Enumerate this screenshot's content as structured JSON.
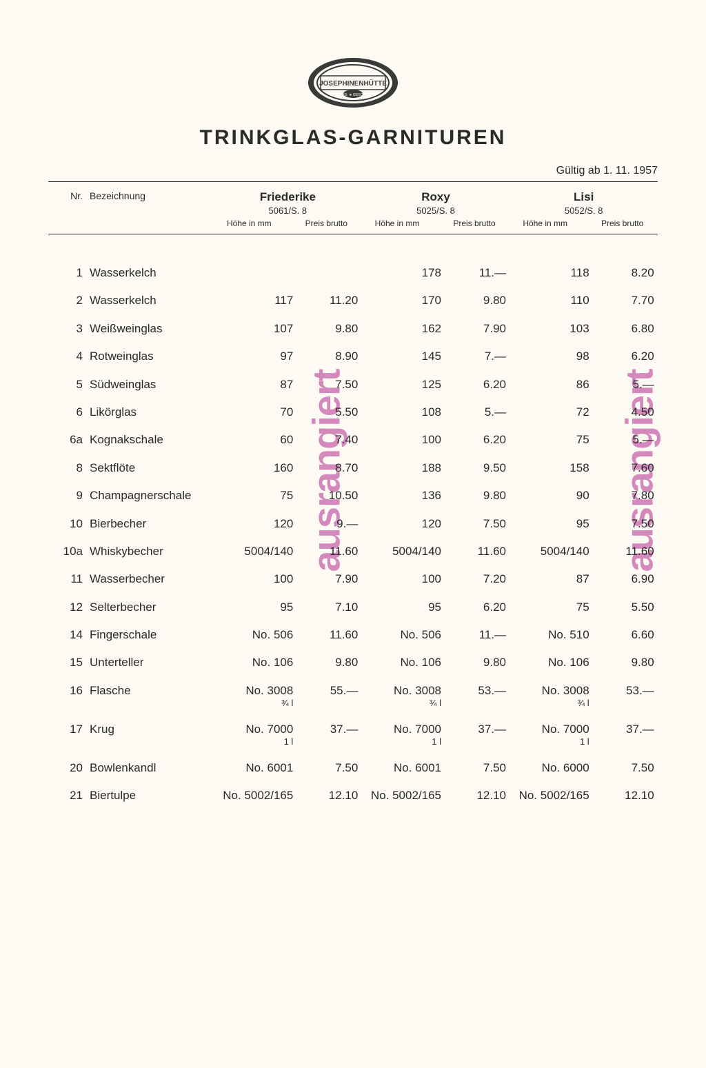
{
  "logo_text": "JOSEPHINENHÜTTE",
  "title": "TRINKGLAS-GARNITUREN",
  "valid_from": "Gültig ab 1. 11. 1957",
  "head_left": {
    "nr": "Nr.",
    "bez": "Bezeichnung"
  },
  "sub_head": {
    "h": "Höhe in mm",
    "p": "Preis brutto"
  },
  "series": [
    {
      "name": "Friederike",
      "code": "5061/S. 8"
    },
    {
      "name": "Roxy",
      "code": "5025/S. 8"
    },
    {
      "name": "Lisi",
      "code": "5052/S. 8"
    }
  ],
  "stamp_text": "ausrangiert",
  "rows": [
    {
      "nr": "1",
      "bez": "Wasserkelch",
      "c": [
        [
          "",
          ""
        ],
        [
          "178",
          "11.—"
        ],
        [
          "118",
          "8.20"
        ]
      ]
    },
    {
      "nr": "2",
      "bez": "Wasserkelch",
      "c": [
        [
          "117",
          "11.20"
        ],
        [
          "170",
          "9.80"
        ],
        [
          "110",
          "7.70"
        ]
      ]
    },
    {
      "nr": "3",
      "bez": "Weißweinglas",
      "c": [
        [
          "107",
          "9.80"
        ],
        [
          "162",
          "7.90"
        ],
        [
          "103",
          "6.80"
        ]
      ]
    },
    {
      "nr": "4",
      "bez": "Rotweinglas",
      "c": [
        [
          "97",
          "8.90"
        ],
        [
          "145",
          "7.—"
        ],
        [
          "98",
          "6.20"
        ]
      ]
    },
    {
      "nr": "5",
      "bez": "Südweinglas",
      "c": [
        [
          "87",
          "7.50"
        ],
        [
          "125",
          "6.20"
        ],
        [
          "86",
          "5.—"
        ]
      ]
    },
    {
      "nr": "6",
      "bez": "Likörglas",
      "c": [
        [
          "70",
          "5.50"
        ],
        [
          "108",
          "5.—"
        ],
        [
          "72",
          "4.50"
        ]
      ]
    },
    {
      "nr": "6a",
      "bez": "Kognakschale",
      "c": [
        [
          "60",
          "7.40"
        ],
        [
          "100",
          "6.20"
        ],
        [
          "75",
          "5.—"
        ]
      ]
    },
    {
      "nr": "8",
      "bez": "Sektflöte",
      "c": [
        [
          "160",
          "8.70"
        ],
        [
          "188",
          "9.50"
        ],
        [
          "158",
          "7.60"
        ]
      ]
    },
    {
      "nr": "9",
      "bez": "Champagnerschale",
      "c": [
        [
          "75",
          "10.50"
        ],
        [
          "136",
          "9.80"
        ],
        [
          "90",
          "7.80"
        ]
      ]
    },
    {
      "nr": "10",
      "bez": "Bierbecher",
      "c": [
        [
          "120",
          "9.—"
        ],
        [
          "120",
          "7.50"
        ],
        [
          "95",
          "7.50"
        ]
      ]
    },
    {
      "nr": "10a",
      "bez": "Whiskybecher",
      "c": [
        [
          "5004/140",
          "11.60"
        ],
        [
          "5004/140",
          "11.60"
        ],
        [
          "5004/140",
          "11.60"
        ]
      ]
    },
    {
      "nr": "11",
      "bez": "Wasserbecher",
      "c": [
        [
          "100",
          "7.90"
        ],
        [
          "100",
          "7.20"
        ],
        [
          "87",
          "6.90"
        ]
      ]
    },
    {
      "nr": "12",
      "bez": "Selterbecher",
      "c": [
        [
          "95",
          "7.10"
        ],
        [
          "95",
          "6.20"
        ],
        [
          "75",
          "5.50"
        ]
      ]
    },
    {
      "nr": "14",
      "bez": "Fingerschale",
      "c": [
        [
          "No.  506",
          "11.60"
        ],
        [
          "No.  506",
          "11.—"
        ],
        [
          "No.  510",
          "6.60"
        ]
      ]
    },
    {
      "nr": "15",
      "bez": "Unterteller",
      "c": [
        [
          "No.  106",
          "9.80"
        ],
        [
          "No.  106",
          "9.80"
        ],
        [
          "No.  106",
          "9.80"
        ]
      ]
    },
    {
      "nr": "16",
      "bez": "Flasche",
      "c": [
        [
          "No. 3008",
          "55.—",
          "¾ l"
        ],
        [
          "No. 3008",
          "53.—",
          "¾ l"
        ],
        [
          "No. 3008",
          "53.—",
          "¾ l"
        ]
      ]
    },
    {
      "nr": "17",
      "bez": "Krug",
      "c": [
        [
          "No. 7000",
          "37.—",
          "1 l"
        ],
        [
          "No. 7000",
          "37.—",
          "1 l"
        ],
        [
          "No. 7000",
          "37.—",
          "1 l"
        ]
      ]
    },
    {
      "nr": "20",
      "bez": "Bowlenkandl",
      "c": [
        [
          "No. 6001",
          "7.50"
        ],
        [
          "No. 6001",
          "7.50"
        ],
        [
          "No. 6000",
          "7.50"
        ]
      ]
    },
    {
      "nr": "21",
      "bez": "Biertulpe",
      "c": [
        [
          "No. 5002/165",
          "12.10"
        ],
        [
          "No. 5002/165",
          "12.10"
        ],
        [
          "No. 5002/165",
          "12.10"
        ]
      ]
    }
  ]
}
